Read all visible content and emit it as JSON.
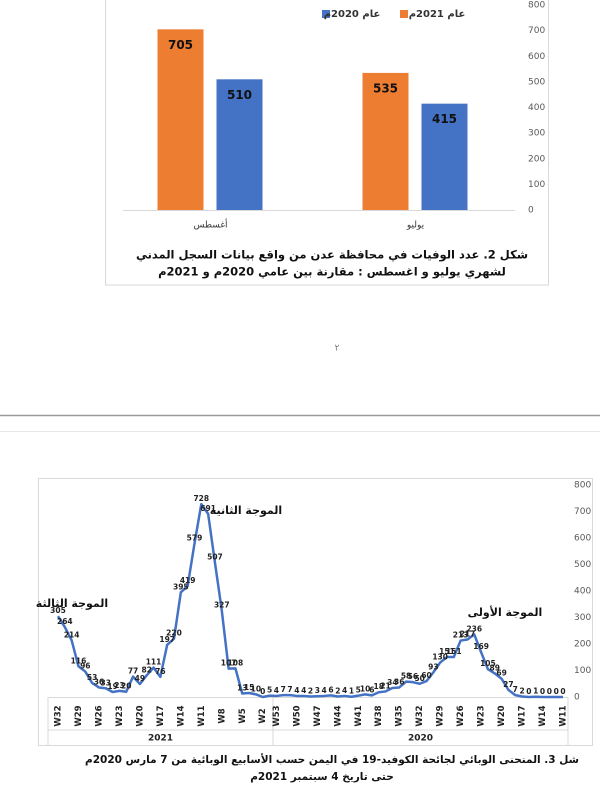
{
  "chart_data": [
    {
      "type": "bar",
      "categories": [
        "أغسطس",
        "يوليو"
      ],
      "series": [
        {
          "name": "عام 2021م",
          "color": "#ed7d31",
          "values": [
            705,
            535
          ]
        },
        {
          "name": "عام 2020م",
          "color": "#4472c4",
          "values": [
            510,
            415
          ]
        }
      ],
      "ylim": [
        0,
        800
      ],
      "yticks": [
        0,
        100,
        200,
        300,
        400,
        500,
        600,
        700,
        800
      ],
      "grid": false,
      "caption": [
        "شكل 2. عدد الوفيات في محافظة عدن من واقع بيانات السجل المدني",
        "لشهري يوليو و اغسطس : مقارنة بين عامي 2020م و 2021م"
      ]
    },
    {
      "type": "line",
      "categories": [
        "W32",
        null,
        null,
        "W29",
        null,
        null,
        "W26",
        null,
        null,
        "W23",
        null,
        null,
        "W20",
        null,
        null,
        "W17",
        null,
        null,
        "W14",
        null,
        null,
        "W11",
        null,
        null,
        "W8",
        null,
        null,
        "W5",
        null,
        null,
        "W2",
        null,
        "W53",
        null,
        null,
        "W50",
        null,
        null,
        "W47",
        null,
        null,
        "W44",
        null,
        null,
        "W41",
        null,
        null,
        "W38",
        null,
        null,
        "W35",
        null,
        null,
        "W32",
        null,
        null,
        "W29",
        null,
        null,
        "W26",
        null,
        null,
        "W23",
        null,
        null,
        "W20",
        null,
        null,
        "W17",
        null,
        null,
        "W14",
        null,
        null,
        "W11"
      ],
      "values": [
        305,
        264,
        214,
        116,
        96,
        53,
        36,
        33,
        19,
        23,
        20,
        77,
        49,
        82,
        111,
        76,
        197,
        220,
        395,
        419,
        579,
        728,
        691,
        507,
        327,
        107,
        108,
        13,
        15,
        10,
        0,
        5,
        4,
        7,
        7,
        4,
        4,
        2,
        3,
        4,
        6,
        2,
        4,
        1,
        5,
        10,
        6,
        18,
        21,
        34,
        36,
        58,
        56,
        50,
        60,
        93,
        130,
        151,
        151,
        213,
        217,
        236,
        169,
        105,
        89,
        69,
        27,
        7,
        2,
        0,
        1,
        0,
        0,
        0,
        0
      ],
      "color": "#4472c4",
      "x_groups": [
        "2021",
        "2020"
      ],
      "annotations": [
        "الموجة الثالثة",
        "الموجة الثانية",
        "الموجة الأولى"
      ],
      "ylim": [
        0,
        800
      ],
      "yticks": [
        0,
        100,
        200,
        300,
        400,
        500,
        600,
        700,
        800
      ],
      "grid": false,
      "caption": [
        "شل 3. المنحنى الوبائي لجائحة الكوفيد-19 في اليمن حسب الأسابيع الوبائية  من 7 مارس 2020م",
        "حتى تاريخ   4 سبتمبر 2021م"
      ]
    }
  ],
  "page_number": "٢"
}
